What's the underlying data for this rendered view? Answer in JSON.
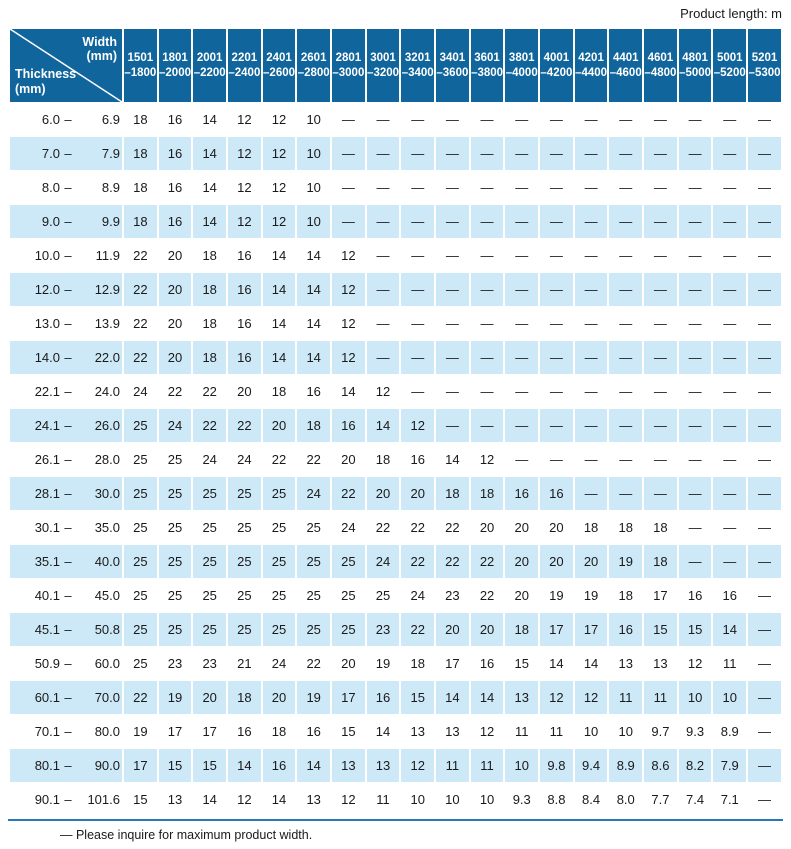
{
  "page": {
    "product_length_label": "Product length: m",
    "footer_note": "— Please inquire for maximum product width."
  },
  "colors": {
    "header_bg": "#10659c",
    "row_alt_bg": "#cde9f7",
    "rule_blue": "#2878b4",
    "text": "#1a1a1a"
  },
  "table": {
    "corner": {
      "width_label": "Width",
      "width_unit": "(mm)",
      "thickness_label": "Thickness",
      "thickness_unit": "(mm)"
    },
    "range_dash": "–",
    "dash": "—",
    "columns": [
      "1501\n–1800",
      "1801\n–2000",
      "2001\n–2200",
      "2201\n–2400",
      "2401\n–2600",
      "2601\n–2800",
      "2801\n–3000",
      "3001\n–3200",
      "3201\n–3400",
      "3401\n–3600",
      "3601\n–3800",
      "3801\n–4000",
      "4001\n–4200",
      "4201\n–4400",
      "4401\n–4600",
      "4601\n–4800",
      "4801\n–5000",
      "5001\n–5200",
      "5201\n–5300"
    ],
    "rows": [
      {
        "min": "6.0",
        "max": "6.9",
        "values": [
          "18",
          "16",
          "14",
          "12",
          "12",
          "10",
          "—",
          "—",
          "—",
          "—",
          "—",
          "—",
          "—",
          "—",
          "—",
          "—",
          "—",
          "—",
          "—"
        ]
      },
      {
        "min": "7.0",
        "max": "7.9",
        "values": [
          "18",
          "16",
          "14",
          "12",
          "12",
          "10",
          "—",
          "—",
          "—",
          "—",
          "—",
          "—",
          "—",
          "—",
          "—",
          "—",
          "—",
          "—",
          "—"
        ]
      },
      {
        "min": "8.0",
        "max": "8.9",
        "values": [
          "18",
          "16",
          "14",
          "12",
          "12",
          "10",
          "—",
          "—",
          "—",
          "—",
          "—",
          "—",
          "—",
          "—",
          "—",
          "—",
          "—",
          "—",
          "—"
        ]
      },
      {
        "min": "9.0",
        "max": "9.9",
        "values": [
          "18",
          "16",
          "14",
          "12",
          "12",
          "10",
          "—",
          "—",
          "—",
          "—",
          "—",
          "—",
          "—",
          "—",
          "—",
          "—",
          "—",
          "—",
          "—"
        ]
      },
      {
        "min": "10.0",
        "max": "11.9",
        "values": [
          "22",
          "20",
          "18",
          "16",
          "14",
          "14",
          "12",
          "—",
          "—",
          "—",
          "—",
          "—",
          "—",
          "—",
          "—",
          "—",
          "—",
          "—",
          "—"
        ]
      },
      {
        "min": "12.0",
        "max": "12.9",
        "values": [
          "22",
          "20",
          "18",
          "16",
          "14",
          "14",
          "12",
          "—",
          "—",
          "—",
          "—",
          "—",
          "—",
          "—",
          "—",
          "—",
          "—",
          "—",
          "—"
        ]
      },
      {
        "min": "13.0",
        "max": "13.9",
        "values": [
          "22",
          "20",
          "18",
          "16",
          "14",
          "14",
          "12",
          "—",
          "—",
          "—",
          "—",
          "—",
          "—",
          "—",
          "—",
          "—",
          "—",
          "—",
          "—"
        ]
      },
      {
        "min": "14.0",
        "max": "22.0",
        "values": [
          "22",
          "20",
          "18",
          "16",
          "14",
          "14",
          "12",
          "—",
          "—",
          "—",
          "—",
          "—",
          "—",
          "—",
          "—",
          "—",
          "—",
          "—",
          "—"
        ]
      },
      {
        "min": "22.1",
        "max": "24.0",
        "values": [
          "24",
          "22",
          "22",
          "20",
          "18",
          "16",
          "14",
          "12",
          "—",
          "—",
          "—",
          "—",
          "—",
          "—",
          "—",
          "—",
          "—",
          "—",
          "—"
        ]
      },
      {
        "min": "24.1",
        "max": "26.0",
        "values": [
          "25",
          "24",
          "22",
          "22",
          "20",
          "18",
          "16",
          "14",
          "12",
          "—",
          "—",
          "—",
          "—",
          "—",
          "—",
          "—",
          "—",
          "—",
          "—"
        ]
      },
      {
        "min": "26.1",
        "max": "28.0",
        "values": [
          "25",
          "25",
          "24",
          "24",
          "22",
          "22",
          "20",
          "18",
          "16",
          "14",
          "12",
          "—",
          "—",
          "—",
          "—",
          "—",
          "—",
          "—",
          "—"
        ]
      },
      {
        "min": "28.1",
        "max": "30.0",
        "values": [
          "25",
          "25",
          "25",
          "25",
          "25",
          "24",
          "22",
          "20",
          "20",
          "18",
          "18",
          "16",
          "16",
          "—",
          "—",
          "—",
          "—",
          "—",
          "—"
        ]
      },
      {
        "min": "30.1",
        "max": "35.0",
        "values": [
          "25",
          "25",
          "25",
          "25",
          "25",
          "25",
          "24",
          "22",
          "22",
          "22",
          "20",
          "20",
          "20",
          "18",
          "18",
          "18",
          "—",
          "—",
          "—"
        ]
      },
      {
        "min": "35.1",
        "max": "40.0",
        "values": [
          "25",
          "25",
          "25",
          "25",
          "25",
          "25",
          "25",
          "24",
          "22",
          "22",
          "22",
          "20",
          "20",
          "20",
          "19",
          "18",
          "—",
          "—",
          "—"
        ]
      },
      {
        "min": "40.1",
        "max": "45.0",
        "values": [
          "25",
          "25",
          "25",
          "25",
          "25",
          "25",
          "25",
          "25",
          "24",
          "23",
          "22",
          "20",
          "19",
          "19",
          "18",
          "17",
          "16",
          "16",
          "—"
        ]
      },
      {
        "min": "45.1",
        "max": "50.8",
        "values": [
          "25",
          "25",
          "25",
          "25",
          "25",
          "25",
          "25",
          "23",
          "22",
          "20",
          "20",
          "18",
          "17",
          "17",
          "16",
          "15",
          "15",
          "14",
          "—"
        ]
      },
      {
        "min": "50.9",
        "max": "60.0",
        "values": [
          "25",
          "23",
          "23",
          "21",
          "24",
          "22",
          "20",
          "19",
          "18",
          "17",
          "16",
          "15",
          "14",
          "14",
          "13",
          "13",
          "12",
          "11",
          "—"
        ]
      },
      {
        "min": "60.1",
        "max": "70.0",
        "values": [
          "22",
          "19",
          "20",
          "18",
          "20",
          "19",
          "17",
          "16",
          "15",
          "14",
          "14",
          "13",
          "12",
          "12",
          "11",
          "11",
          "10",
          "10",
          "—"
        ]
      },
      {
        "min": "70.1",
        "max": "80.0",
        "values": [
          "19",
          "17",
          "17",
          "16",
          "18",
          "16",
          "15",
          "14",
          "13",
          "13",
          "12",
          "11",
          "11",
          "10",
          "10",
          "9.7",
          "9.3",
          "8.9",
          "—"
        ]
      },
      {
        "min": "80.1",
        "max": "90.0",
        "values": [
          "17",
          "15",
          "15",
          "14",
          "16",
          "14",
          "13",
          "13",
          "12",
          "11",
          "11",
          "10",
          "9.8",
          "9.4",
          "8.9",
          "8.6",
          "8.2",
          "7.9",
          "—"
        ]
      },
      {
        "min": "90.1",
        "max": "101.6",
        "values": [
          "15",
          "13",
          "14",
          "12",
          "14",
          "13",
          "12",
          "11",
          "10",
          "10",
          "10",
          "9.3",
          "8.8",
          "8.4",
          "8.0",
          "7.7",
          "7.4",
          "7.1",
          "—"
        ]
      }
    ]
  }
}
